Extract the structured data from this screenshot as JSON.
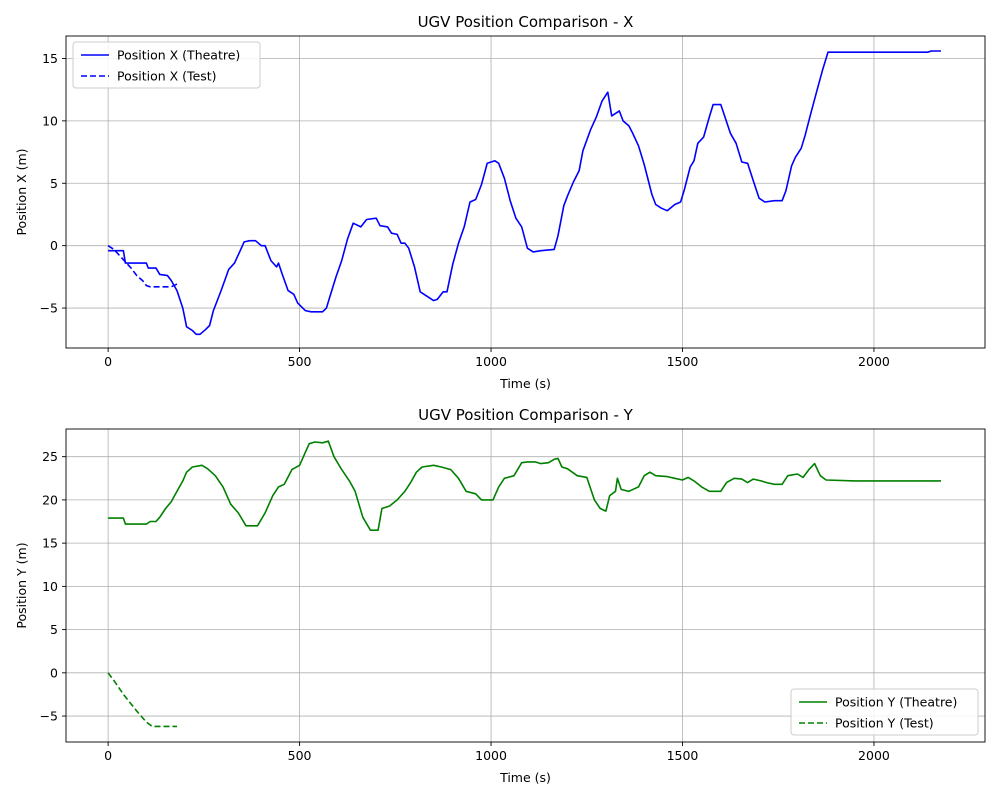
{
  "chart_data": [
    {
      "type": "line",
      "title": "UGV Position Comparison - X",
      "xlabel": "Time (s)",
      "ylabel": "Position X (m)",
      "xlim": [
        -110,
        2290
      ],
      "ylim": [
        -8.2,
        16.8
      ],
      "xticks": [
        0,
        500,
        1000,
        1500,
        2000
      ],
      "yticks": [
        -5,
        0,
        5,
        10,
        15
      ],
      "grid": true,
      "legend_position": "upper left",
      "series": [
        {
          "name": "Position X (Theatre)",
          "color": "#0000ff",
          "style": "solid",
          "points": [
            [
              0,
              -0.4
            ],
            [
              15,
              -0.4
            ],
            [
              40,
              -0.4
            ],
            [
              45,
              -1.4
            ],
            [
              60,
              -1.4
            ],
            [
              100,
              -1.4
            ],
            [
              105,
              -1.8
            ],
            [
              125,
              -1.8
            ],
            [
              135,
              -2.3
            ],
            [
              155,
              -2.4
            ],
            [
              165,
              -2.8
            ],
            [
              180,
              -3.6
            ],
            [
              195,
              -5.0
            ],
            [
              205,
              -6.5
            ],
            [
              220,
              -6.8
            ],
            [
              230,
              -7.1
            ],
            [
              240,
              -7.1
            ],
            [
              255,
              -6.7
            ],
            [
              265,
              -6.4
            ],
            [
              275,
              -5.2
            ],
            [
              295,
              -3.6
            ],
            [
              315,
              -1.9
            ],
            [
              330,
              -1.4
            ],
            [
              345,
              -0.4
            ],
            [
              355,
              0.3
            ],
            [
              370,
              0.4
            ],
            [
              385,
              0.4
            ],
            [
              400,
              0.0
            ],
            [
              410,
              0.0
            ],
            [
              425,
              -1.2
            ],
            [
              440,
              -1.7
            ],
            [
              445,
              -1.4
            ],
            [
              455,
              -2.3
            ],
            [
              470,
              -3.6
            ],
            [
              485,
              -3.9
            ],
            [
              495,
              -4.6
            ],
            [
              515,
              -5.2
            ],
            [
              530,
              -5.3
            ],
            [
              560,
              -5.3
            ],
            [
              570,
              -5.0
            ],
            [
              580,
              -4.0
            ],
            [
              595,
              -2.5
            ],
            [
              610,
              -1.2
            ],
            [
              625,
              0.5
            ],
            [
              640,
              1.8
            ],
            [
              660,
              1.5
            ],
            [
              675,
              2.1
            ],
            [
              700,
              2.2
            ],
            [
              710,
              1.6
            ],
            [
              730,
              1.5
            ],
            [
              740,
              1.0
            ],
            [
              755,
              0.9
            ],
            [
              765,
              0.2
            ],
            [
              775,
              0.2
            ],
            [
              785,
              -0.2
            ],
            [
              800,
              -1.7
            ],
            [
              815,
              -3.7
            ],
            [
              830,
              -4.0
            ],
            [
              850,
              -4.4
            ],
            [
              860,
              -4.3
            ],
            [
              875,
              -3.7
            ],
            [
              885,
              -3.7
            ],
            [
              900,
              -1.5
            ],
            [
              915,
              0.2
            ],
            [
              930,
              1.5
            ],
            [
              945,
              3.5
            ],
            [
              960,
              3.7
            ],
            [
              975,
              4.9
            ],
            [
              990,
              6.6
            ],
            [
              1010,
              6.8
            ],
            [
              1020,
              6.6
            ],
            [
              1035,
              5.4
            ],
            [
              1050,
              3.6
            ],
            [
              1065,
              2.2
            ],
            [
              1080,
              1.5
            ],
            [
              1095,
              -0.2
            ],
            [
              1110,
              -0.5
            ],
            [
              1130,
              -0.4
            ],
            [
              1165,
              -0.3
            ],
            [
              1175,
              0.8
            ],
            [
              1190,
              3.2
            ],
            [
              1200,
              4.0
            ],
            [
              1215,
              5.1
            ],
            [
              1230,
              6.0
            ],
            [
              1240,
              7.6
            ],
            [
              1260,
              9.3
            ],
            [
              1275,
              10.3
            ],
            [
              1290,
              11.6
            ],
            [
              1305,
              12.3
            ],
            [
              1315,
              10.4
            ],
            [
              1335,
              10.8
            ],
            [
              1345,
              10.0
            ],
            [
              1360,
              9.6
            ],
            [
              1370,
              9.0
            ],
            [
              1385,
              8.0
            ],
            [
              1400,
              6.5
            ],
            [
              1420,
              4.1
            ],
            [
              1430,
              3.3
            ],
            [
              1445,
              3.0
            ],
            [
              1460,
              2.8
            ],
            [
              1480,
              3.3
            ],
            [
              1495,
              3.5
            ],
            [
              1505,
              4.5
            ],
            [
              1520,
              6.3
            ],
            [
              1530,
              6.8
            ],
            [
              1540,
              8.2
            ],
            [
              1555,
              8.7
            ],
            [
              1570,
              10.3
            ],
            [
              1580,
              11.3
            ],
            [
              1600,
              11.3
            ],
            [
              1610,
              10.4
            ],
            [
              1625,
              9.0
            ],
            [
              1640,
              8.2
            ],
            [
              1655,
              6.7
            ],
            [
              1670,
              6.6
            ],
            [
              1685,
              5.2
            ],
            [
              1700,
              3.8
            ],
            [
              1715,
              3.5
            ],
            [
              1740,
              3.6
            ],
            [
              1760,
              3.6
            ],
            [
              1770,
              4.4
            ],
            [
              1785,
              6.4
            ],
            [
              1795,
              7.1
            ],
            [
              1810,
              7.8
            ],
            [
              1820,
              8.8
            ],
            [
              1835,
              10.6
            ],
            [
              1850,
              12.3
            ],
            [
              1865,
              14.0
            ],
            [
              1880,
              15.5
            ],
            [
              1950,
              15.5
            ],
            [
              2050,
              15.5
            ],
            [
              2140,
              15.5
            ],
            [
              2150,
              15.6
            ],
            [
              2175,
              15.6
            ]
          ]
        },
        {
          "name": "Position X (Test)",
          "color": "#0000ff",
          "style": "dashed",
          "points": [
            [
              0,
              0.0
            ],
            [
              15,
              -0.3
            ],
            [
              30,
              -0.8
            ],
            [
              45,
              -1.3
            ],
            [
              60,
              -1.8
            ],
            [
              75,
              -2.4
            ],
            [
              90,
              -2.8
            ],
            [
              100,
              -3.2
            ],
            [
              110,
              -3.3
            ],
            [
              140,
              -3.3
            ],
            [
              165,
              -3.3
            ],
            [
              185,
              -3.0
            ]
          ]
        }
      ]
    },
    {
      "type": "line",
      "title": "UGV Position Comparison - Y",
      "xlabel": "Time (s)",
      "ylabel": "Position Y (m)",
      "xlim": [
        -110,
        2290
      ],
      "ylim": [
        -8.0,
        28.2
      ],
      "xticks": [
        0,
        500,
        1000,
        1500,
        2000
      ],
      "yticks": [
        -5,
        0,
        5,
        10,
        15,
        20,
        25
      ],
      "grid": true,
      "legend_position": "lower right",
      "series": [
        {
          "name": "Position Y (Theatre)",
          "color": "#008000",
          "style": "solid",
          "points": [
            [
              0,
              17.9
            ],
            [
              40,
              17.9
            ],
            [
              45,
              17.2
            ],
            [
              60,
              17.2
            ],
            [
              100,
              17.2
            ],
            [
              110,
              17.5
            ],
            [
              125,
              17.5
            ],
            [
              135,
              18.0
            ],
            [
              150,
              19.0
            ],
            [
              165,
              19.8
            ],
            [
              180,
              21.0
            ],
            [
              195,
              22.2
            ],
            [
              205,
              23.2
            ],
            [
              220,
              23.8
            ],
            [
              245,
              24.0
            ],
            [
              260,
              23.6
            ],
            [
              280,
              22.8
            ],
            [
              300,
              21.5
            ],
            [
              320,
              19.5
            ],
            [
              340,
              18.5
            ],
            [
              360,
              17.0
            ],
            [
              390,
              17.0
            ],
            [
              410,
              18.5
            ],
            [
              430,
              20.5
            ],
            [
              445,
              21.5
            ],
            [
              460,
              21.8
            ],
            [
              480,
              23.5
            ],
            [
              500,
              24.0
            ],
            [
              510,
              25.0
            ],
            [
              525,
              26.5
            ],
            [
              540,
              26.7
            ],
            [
              560,
              26.6
            ],
            [
              575,
              26.8
            ],
            [
              590,
              25.0
            ],
            [
              610,
              23.5
            ],
            [
              630,
              22.2
            ],
            [
              645,
              21.0
            ],
            [
              665,
              18.0
            ],
            [
              685,
              16.5
            ],
            [
              705,
              16.5
            ],
            [
              715,
              19.0
            ],
            [
              735,
              19.3
            ],
            [
              755,
              20.0
            ],
            [
              775,
              21.0
            ],
            [
              790,
              22.0
            ],
            [
              805,
              23.2
            ],
            [
              820,
              23.8
            ],
            [
              850,
              24.0
            ],
            [
              870,
              23.8
            ],
            [
              895,
              23.5
            ],
            [
              915,
              22.5
            ],
            [
              935,
              21.0
            ],
            [
              960,
              20.7
            ],
            [
              975,
              20.0
            ],
            [
              1005,
              20.0
            ],
            [
              1020,
              21.5
            ],
            [
              1035,
              22.5
            ],
            [
              1060,
              22.8
            ],
            [
              1080,
              24.3
            ],
            [
              1095,
              24.4
            ],
            [
              1115,
              24.4
            ],
            [
              1130,
              24.2
            ],
            [
              1150,
              24.3
            ],
            [
              1165,
              24.7
            ],
            [
              1175,
              24.8
            ],
            [
              1185,
              23.8
            ],
            [
              1200,
              23.6
            ],
            [
              1225,
              22.8
            ],
            [
              1250,
              22.6
            ],
            [
              1270,
              20.0
            ],
            [
              1285,
              19.0
            ],
            [
              1300,
              18.7
            ],
            [
              1310,
              20.5
            ],
            [
              1325,
              21.0
            ],
            [
              1330,
              22.5
            ],
            [
              1340,
              21.2
            ],
            [
              1360,
              21.0
            ],
            [
              1385,
              21.5
            ],
            [
              1400,
              22.8
            ],
            [
              1415,
              23.2
            ],
            [
              1430,
              22.8
            ],
            [
              1460,
              22.7
            ],
            [
              1480,
              22.5
            ],
            [
              1500,
              22.3
            ],
            [
              1515,
              22.6
            ],
            [
              1530,
              22.2
            ],
            [
              1550,
              21.5
            ],
            [
              1570,
              21.0
            ],
            [
              1600,
              21.0
            ],
            [
              1615,
              22.0
            ],
            [
              1635,
              22.5
            ],
            [
              1655,
              22.4
            ],
            [
              1670,
              22.0
            ],
            [
              1685,
              22.4
            ],
            [
              1705,
              22.2
            ],
            [
              1720,
              22.0
            ],
            [
              1740,
              21.8
            ],
            [
              1760,
              21.8
            ],
            [
              1775,
              22.8
            ],
            [
              1800,
              23.0
            ],
            [
              1815,
              22.6
            ],
            [
              1830,
              23.5
            ],
            [
              1845,
              24.2
            ],
            [
              1860,
              22.8
            ],
            [
              1875,
              22.3
            ],
            [
              1950,
              22.2
            ],
            [
              2050,
              22.2
            ],
            [
              2175,
              22.2
            ]
          ]
        },
        {
          "name": "Position Y (Test)",
          "color": "#008000",
          "style": "dashed",
          "points": [
            [
              0,
              0.0
            ],
            [
              20,
              -1.2
            ],
            [
              40,
              -2.5
            ],
            [
              60,
              -3.6
            ],
            [
              80,
              -4.7
            ],
            [
              100,
              -5.7
            ],
            [
              115,
              -6.2
            ],
            [
              140,
              -6.2
            ],
            [
              165,
              -6.2
            ],
            [
              180,
              -6.2
            ]
          ]
        }
      ]
    }
  ]
}
